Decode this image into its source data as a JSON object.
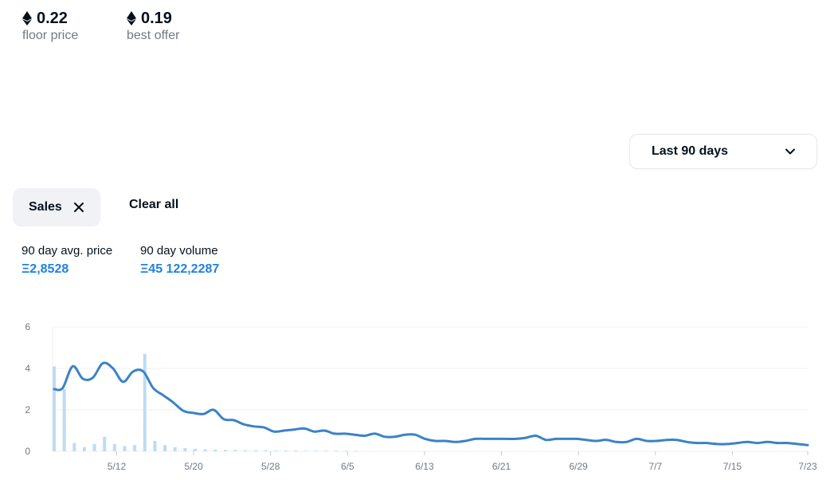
{
  "stats": [
    {
      "value": "0.22",
      "label": "floor price",
      "icon": "ethereum-icon"
    },
    {
      "value": "0.19",
      "label": "best offer",
      "icon": "ethereum-icon"
    }
  ],
  "range_dropdown": {
    "selected": "Last 90 days",
    "icon": "chevron-down-icon"
  },
  "filters": {
    "chip_label": "Sales",
    "chip_icon": "close-icon",
    "clear_label": "Clear all"
  },
  "metrics": [
    {
      "label": "90 day avg. price",
      "value": "Ξ2,8528"
    },
    {
      "label": "90 day volume",
      "value": "Ξ45 122,2287"
    }
  ],
  "colors": {
    "accent": "#2081e2",
    "line": "#3b82c6",
    "bar": "#bfdbf3",
    "grid": "#eef0f2",
    "axis_text": "#707a83"
  },
  "chart_data": {
    "type": "line",
    "title": "",
    "xlabel": "",
    "ylabel": "",
    "ylim": [
      0,
      6
    ],
    "xlim": [
      0,
      75
    ],
    "x_tick_labels": [
      "5/12",
      "5/20",
      "5/28",
      "6/5",
      "6/13",
      "6/21",
      "6/29",
      "7/7",
      "7/15",
      "7/23"
    ],
    "x_tick_positions": [
      6,
      14,
      22,
      30,
      38,
      46,
      54,
      62,
      70,
      78
    ],
    "y_ticks": [
      0,
      2,
      4,
      6
    ],
    "grid": true,
    "series": [
      {
        "type": "line",
        "x": [
          0,
          1,
          2,
          3,
          4,
          5,
          6,
          7,
          8,
          9,
          10,
          11,
          12,
          13,
          14,
          15,
          16,
          17,
          18,
          19,
          20,
          21,
          22,
          23,
          24,
          25,
          26,
          27,
          28,
          29,
          30,
          31,
          32,
          33,
          34,
          35,
          36,
          37,
          38,
          39,
          40,
          41,
          42,
          43,
          44,
          45,
          46,
          47,
          48,
          49,
          50,
          51,
          52,
          53,
          54,
          55,
          56,
          57,
          58,
          59,
          60,
          61,
          62,
          63,
          64,
          65,
          66,
          67,
          68,
          69,
          70,
          71,
          72,
          73,
          74,
          75
        ],
        "y": [
          3.0,
          3.05,
          4.1,
          3.5,
          3.55,
          4.25,
          4.0,
          3.35,
          3.85,
          3.85,
          3.05,
          2.7,
          2.35,
          1.95,
          1.85,
          1.8,
          2.0,
          1.55,
          1.5,
          1.3,
          1.2,
          1.15,
          0.95,
          1.0,
          1.05,
          1.1,
          0.95,
          1.0,
          0.85,
          0.85,
          0.8,
          0.75,
          0.85,
          0.7,
          0.7,
          0.8,
          0.8,
          0.6,
          0.5,
          0.5,
          0.45,
          0.5,
          0.6,
          0.6,
          0.6,
          0.6,
          0.6,
          0.65,
          0.75,
          0.55,
          0.6,
          0.6,
          0.6,
          0.55,
          0.5,
          0.55,
          0.45,
          0.45,
          0.6,
          0.5,
          0.5,
          0.55,
          0.55,
          0.45,
          0.4,
          0.4,
          0.35,
          0.35,
          0.4,
          0.45,
          0.4,
          0.45,
          0.4,
          0.4,
          0.35,
          0.3
        ]
      },
      {
        "type": "bar",
        "x": [
          0,
          1,
          2,
          3,
          4,
          5,
          6,
          7,
          8,
          9,
          10,
          11,
          12,
          13,
          14,
          15,
          16,
          17,
          18,
          19,
          20,
          21,
          22,
          23,
          24,
          25,
          26,
          27,
          28,
          29,
          30
        ],
        "y": [
          4.1,
          3.0,
          0.4,
          0.2,
          0.35,
          0.7,
          0.35,
          0.25,
          0.3,
          4.7,
          0.5,
          0.3,
          0.2,
          0.15,
          0.12,
          0.1,
          0.08,
          0.07,
          0.06,
          0.05,
          0.05,
          0.05,
          0.04,
          0.04,
          0.04,
          0.03,
          0.03,
          0.03,
          0.03,
          0.03,
          0.02
        ]
      }
    ]
  }
}
